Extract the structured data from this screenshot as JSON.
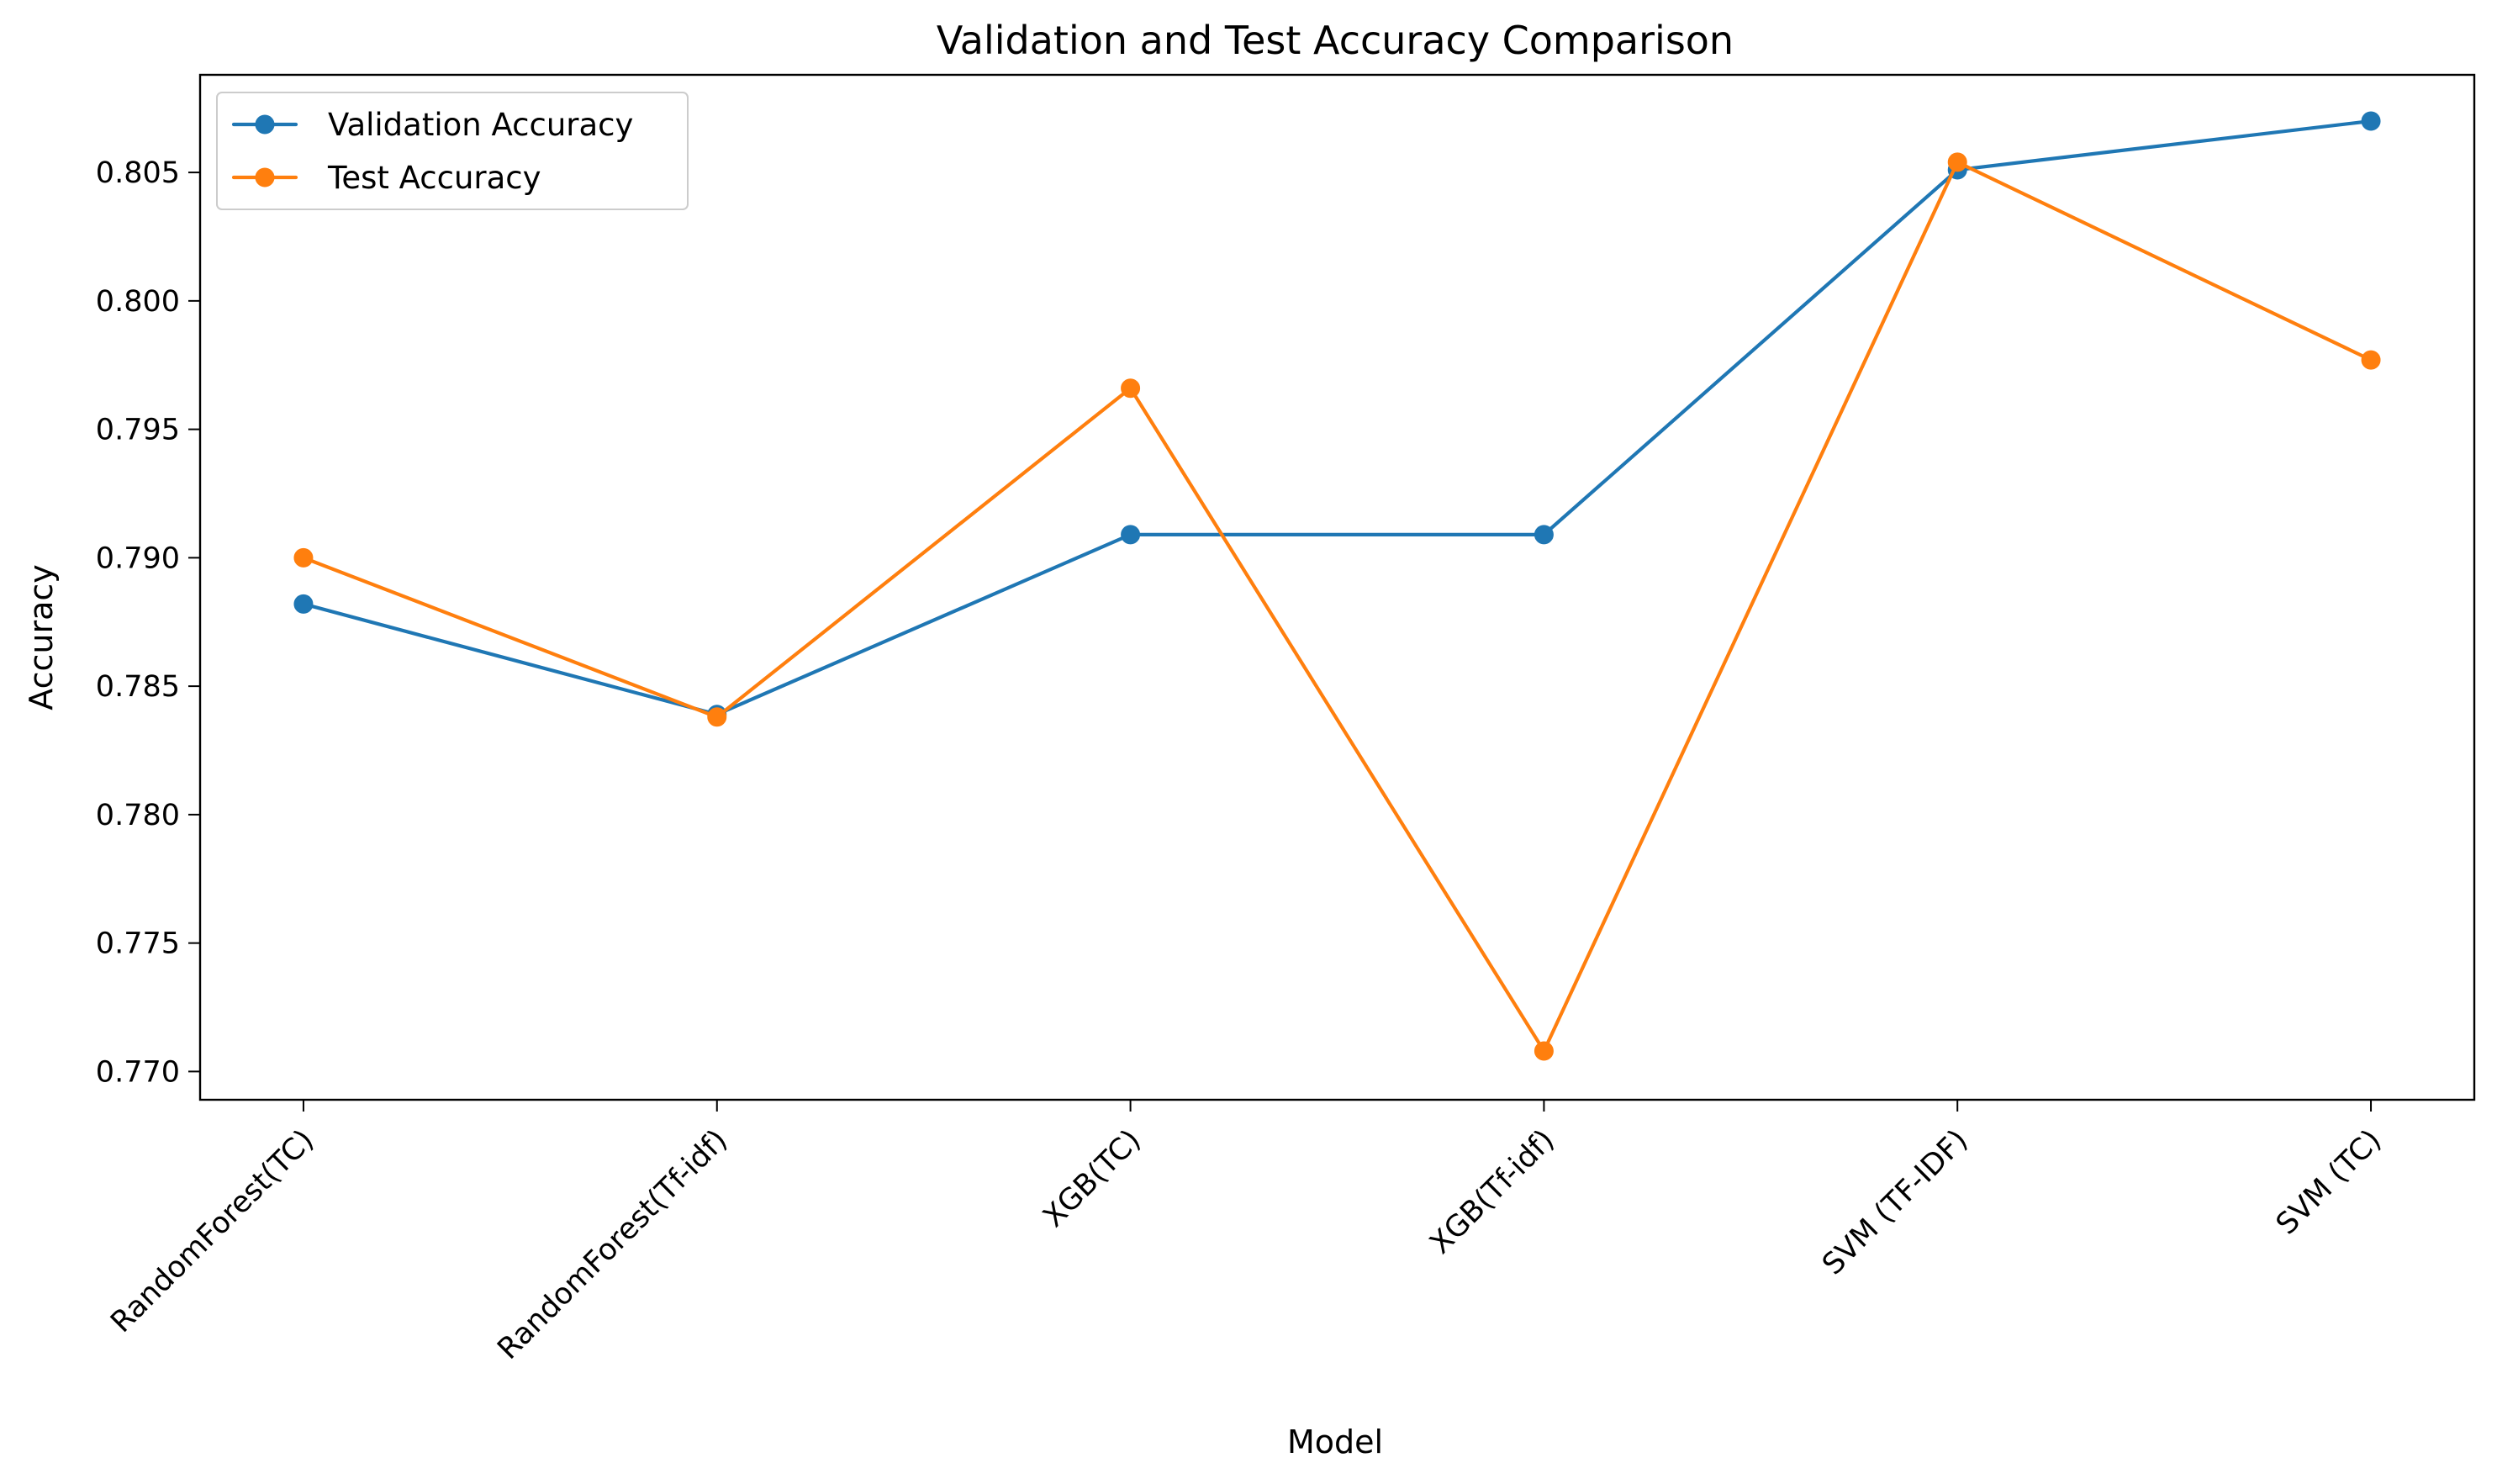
{
  "chart_data": {
    "type": "line",
    "title": "Validation and Test Accuracy Comparison",
    "xlabel": "Model",
    "ylabel": "Accuracy",
    "categories": [
      "RandomForest(TC)",
      "RandomForest(Tf-idf)",
      "XGB(TC)",
      "XGB(Tf-idf)",
      "SVM (TF-IDF)",
      "SVM (TC)"
    ],
    "series": [
      {
        "name": "Validation Accuracy",
        "color": "#1f77b4",
        "marker": "circle",
        "values": [
          0.7882,
          0.7839,
          0.7909,
          0.7909,
          0.8051,
          0.807
        ]
      },
      {
        "name": "Test Accuracy",
        "color": "#ff7f0e",
        "marker": "circle",
        "values": [
          0.79,
          0.7838,
          0.7966,
          0.7708,
          0.8054,
          0.7977
        ]
      }
    ],
    "ylim": [
      0.7689,
      0.8088
    ],
    "yticks": [
      "0.770",
      "0.775",
      "0.780",
      "0.785",
      "0.790",
      "0.795",
      "0.800",
      "0.805"
    ],
    "grid": false,
    "legend_position": "top-left",
    "x_tick_rotation": "45deg"
  }
}
